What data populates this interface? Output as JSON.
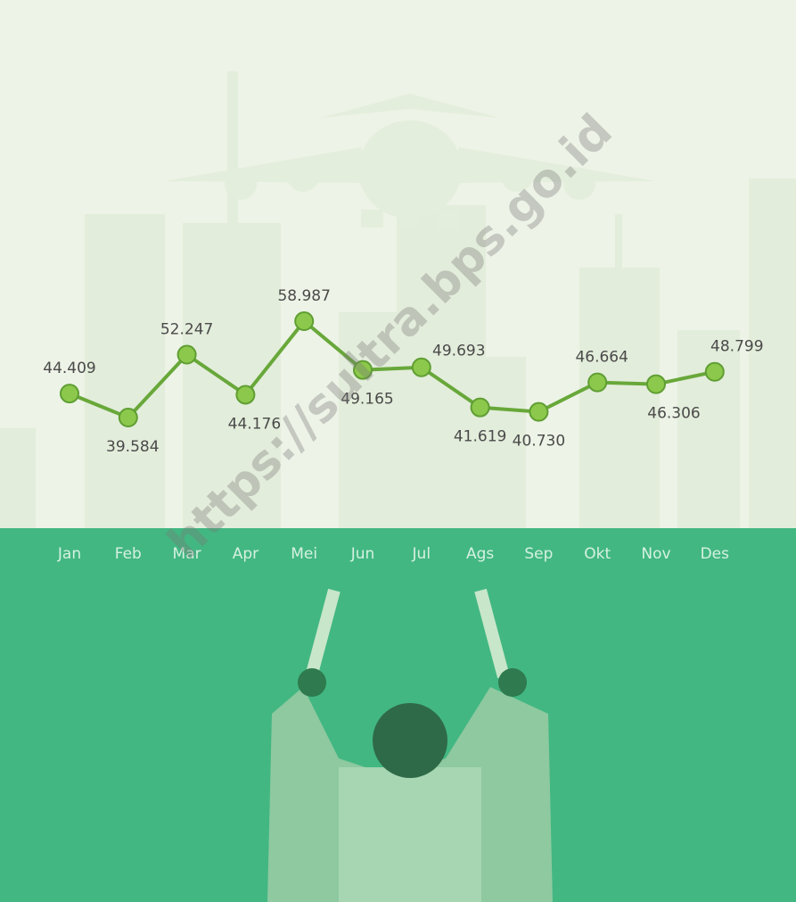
{
  "chart_data": {
    "type": "line",
    "categories": [
      "Jan",
      "Feb",
      "Mar",
      "Apr",
      "Mei",
      "Jun",
      "Jul",
      "Ags",
      "Sep",
      "Okt",
      "Nov",
      "Des"
    ],
    "values": [
      44409,
      39584,
      52247,
      44176,
      58987,
      49165,
      49693,
      41619,
      40730,
      46664,
      46306,
      48799
    ],
    "value_labels": [
      "44.409",
      "39.584",
      "52.247",
      "44.176",
      "58.987",
      "49.165",
      "49.693",
      "41.619",
      "40.730",
      "46.664",
      "46.306",
      "48.799"
    ],
    "color": "#68a83a",
    "watermark": "https://sultra.bps.go.id"
  }
}
